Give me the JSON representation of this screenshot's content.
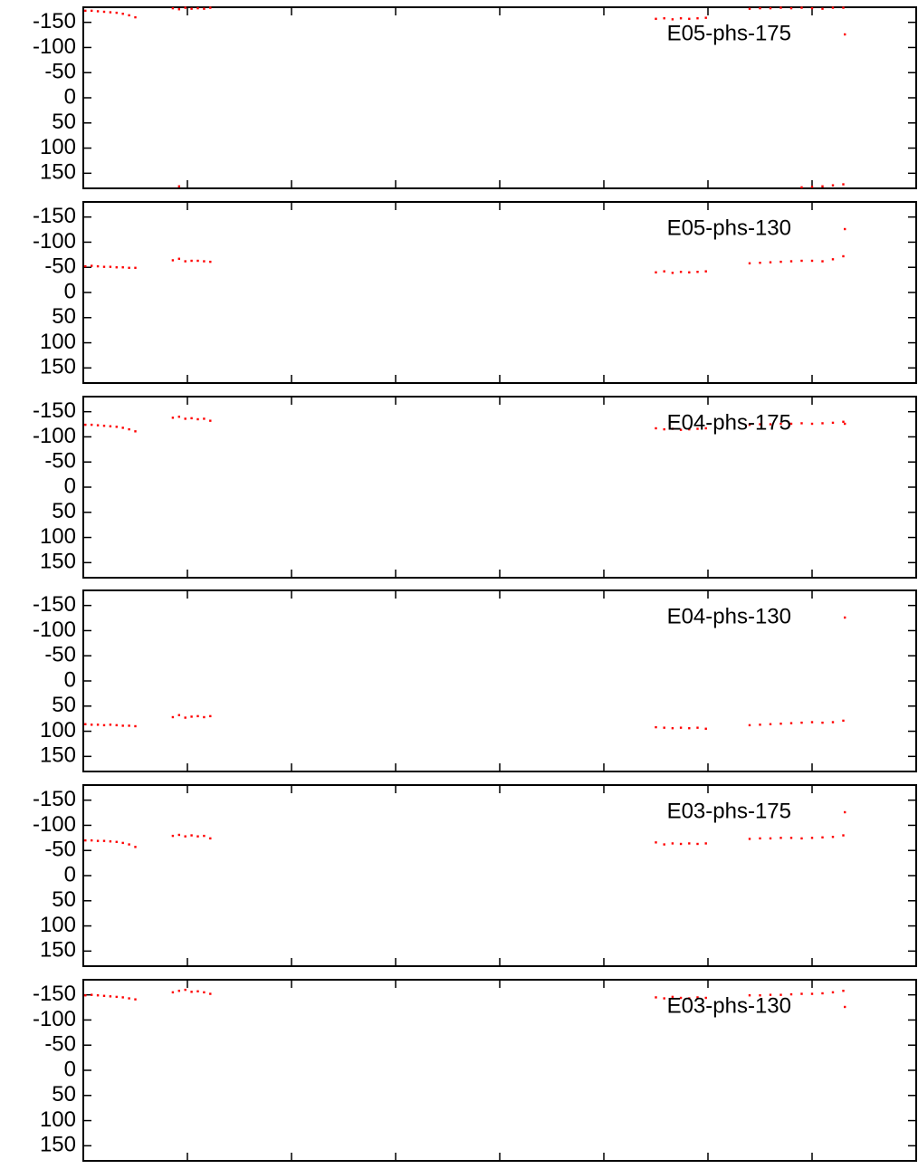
{
  "chart_data": [
    {
      "type": "scatter",
      "legend": "top-right",
      "y_inverted": true,
      "xlim": [
        0,
        8
      ],
      "xticks": [
        1,
        2,
        3,
        4,
        5,
        6,
        7
      ],
      "ylim": [
        -180,
        180
      ],
      "yticks": [
        -150,
        -100,
        -50,
        0,
        50,
        100,
        150
      ],
      "series": [
        {
          "name": "E05-phs-175",
          "color": "#ff0000",
          "x": [
            0.02,
            0.08,
            0.14,
            0.2,
            0.26,
            0.32,
            0.38,
            0.44,
            0.5,
            0.86,
            0.92,
            0.98,
            1.04,
            1.1,
            1.16,
            1.22,
            5.5,
            5.58,
            5.66,
            5.74,
            5.82,
            5.9,
            5.98,
            6.4,
            6.5,
            6.6,
            6.7,
            6.8,
            6.9,
            7.0,
            7.1,
            7.2,
            7.3,
            0.92,
            6.9,
            7.0,
            7.1,
            7.2,
            7.3
          ],
          "values": [
            -173,
            -173,
            -172,
            -171,
            -170,
            -169,
            -167,
            -164,
            -160,
            -178,
            -176,
            -179,
            -177,
            -178,
            -177,
            -179,
            -157,
            -158,
            -156,
            -158,
            -157,
            -158,
            -159,
            -177,
            -178,
            -178,
            -179,
            -178,
            -179,
            -178,
            -177,
            -179,
            -179,
            176,
            178,
            177,
            176,
            174,
            172
          ]
        }
      ]
    },
    {
      "type": "scatter",
      "legend": "top-right",
      "y_inverted": true,
      "xlim": [
        0,
        8
      ],
      "xticks": [
        1,
        2,
        3,
        4,
        5,
        6,
        7
      ],
      "ylim": [
        -180,
        180
      ],
      "yticks": [
        -150,
        -100,
        -50,
        0,
        50,
        100,
        150
      ],
      "series": [
        {
          "name": "E05-phs-130",
          "color": "#ff0000",
          "x": [
            0.02,
            0.08,
            0.14,
            0.2,
            0.26,
            0.32,
            0.38,
            0.44,
            0.5,
            0.86,
            0.92,
            0.98,
            1.04,
            1.1,
            1.16,
            1.22,
            5.5,
            5.58,
            5.66,
            5.74,
            5.82,
            5.9,
            5.98,
            6.4,
            6.5,
            6.6,
            6.7,
            6.8,
            6.9,
            7.0,
            7.1,
            7.2,
            7.3
          ],
          "values": [
            -52,
            -53,
            -52,
            -51,
            -51,
            -50,
            -50,
            -49,
            -49,
            -64,
            -67,
            -62,
            -63,
            -63,
            -62,
            -61,
            -40,
            -42,
            -39,
            -41,
            -40,
            -41,
            -42,
            -58,
            -59,
            -60,
            -61,
            -62,
            -63,
            -63,
            -62,
            -66,
            -72
          ]
        }
      ]
    },
    {
      "type": "scatter",
      "legend": "top-right",
      "y_inverted": true,
      "xlim": [
        0,
        8
      ],
      "xticks": [
        1,
        2,
        3,
        4,
        5,
        6,
        7
      ],
      "ylim": [
        -180,
        180
      ],
      "yticks": [
        -150,
        -100,
        -50,
        0,
        50,
        100,
        150
      ],
      "series": [
        {
          "name": "E04-phs-175",
          "color": "#ff0000",
          "x": [
            0.02,
            0.08,
            0.14,
            0.2,
            0.26,
            0.32,
            0.38,
            0.44,
            0.5,
            0.86,
            0.92,
            0.98,
            1.04,
            1.1,
            1.16,
            1.22,
            5.5,
            5.58,
            5.66,
            5.74,
            5.82,
            5.9,
            5.98,
            6.4,
            6.5,
            6.6,
            6.7,
            6.8,
            6.9,
            7.0,
            7.1,
            7.2,
            7.3
          ],
          "values": [
            -124,
            -124,
            -123,
            -122,
            -121,
            -120,
            -118,
            -115,
            -111,
            -138,
            -140,
            -136,
            -137,
            -135,
            -136,
            -132,
            -117,
            -115,
            -116,
            -114,
            -115,
            -116,
            -117,
            -124,
            -125,
            -125,
            -126,
            -126,
            -127,
            -126,
            -127,
            -128,
            -130
          ]
        }
      ]
    },
    {
      "type": "scatter",
      "legend": "top-right",
      "y_inverted": true,
      "xlim": [
        0,
        8
      ],
      "xticks": [
        1,
        2,
        3,
        4,
        5,
        6,
        7
      ],
      "ylim": [
        -180,
        180
      ],
      "yticks": [
        -150,
        -100,
        -50,
        0,
        50,
        100,
        150
      ],
      "series": [
        {
          "name": "E04-phs-130",
          "color": "#ff0000",
          "x": [
            0.02,
            0.08,
            0.14,
            0.2,
            0.26,
            0.32,
            0.38,
            0.44,
            0.5,
            0.86,
            0.92,
            0.98,
            1.04,
            1.1,
            1.16,
            1.22,
            5.5,
            5.58,
            5.66,
            5.74,
            5.82,
            5.9,
            5.98,
            6.4,
            6.5,
            6.6,
            6.7,
            6.8,
            6.9,
            7.0,
            7.1,
            7.2,
            7.3
          ],
          "values": [
            86,
            87,
            87,
            88,
            87,
            88,
            89,
            89,
            90,
            72,
            68,
            73,
            71,
            70,
            72,
            70,
            92,
            93,
            94,
            93,
            94,
            93,
            95,
            88,
            87,
            86,
            85,
            84,
            83,
            82,
            83,
            82,
            79
          ]
        }
      ]
    },
    {
      "type": "scatter",
      "legend": "top-right",
      "y_inverted": true,
      "xlim": [
        0,
        8
      ],
      "xticks": [
        1,
        2,
        3,
        4,
        5,
        6,
        7
      ],
      "ylim": [
        -180,
        180
      ],
      "yticks": [
        -150,
        -100,
        -50,
        0,
        50,
        100,
        150
      ],
      "series": [
        {
          "name": "E03-phs-175",
          "color": "#ff0000",
          "x": [
            0.02,
            0.08,
            0.14,
            0.2,
            0.26,
            0.32,
            0.38,
            0.44,
            0.5,
            0.86,
            0.92,
            0.98,
            1.04,
            1.1,
            1.16,
            1.22,
            5.5,
            5.58,
            5.66,
            5.74,
            5.82,
            5.9,
            5.98,
            6.4,
            6.5,
            6.6,
            6.7,
            6.8,
            6.9,
            7.0,
            7.1,
            7.2,
            7.3
          ],
          "values": [
            -70,
            -70,
            -69,
            -69,
            -68,
            -67,
            -65,
            -62,
            -57,
            -79,
            -81,
            -78,
            -80,
            -78,
            -79,
            -74,
            -66,
            -62,
            -64,
            -63,
            -64,
            -63,
            -64,
            -73,
            -74,
            -74,
            -75,
            -75,
            -74,
            -75,
            -76,
            -77,
            -80
          ]
        }
      ]
    },
    {
      "type": "scatter",
      "legend": "top-right",
      "y_inverted": true,
      "xlim": [
        0,
        8
      ],
      "xticks": [
        1,
        2,
        3,
        4,
        5,
        6,
        7
      ],
      "ylim": [
        -180,
        180
      ],
      "yticks": [
        -150,
        -100,
        -50,
        0,
        50,
        100,
        150
      ],
      "series": [
        {
          "name": "E03-phs-130",
          "color": "#ff0000",
          "x": [
            0.02,
            0.08,
            0.14,
            0.2,
            0.26,
            0.32,
            0.38,
            0.44,
            0.5,
            0.86,
            0.92,
            0.98,
            1.04,
            1.1,
            1.16,
            1.22,
            5.5,
            5.58,
            5.66,
            5.74,
            5.82,
            5.9,
            5.98,
            6.4,
            6.5,
            6.6,
            6.7,
            6.8,
            6.9,
            7.0,
            7.1,
            7.2,
            7.3
          ],
          "values": [
            -149,
            -150,
            -149,
            -148,
            -147,
            -146,
            -145,
            -143,
            -141,
            -155,
            -158,
            -160,
            -156,
            -157,
            -155,
            -152,
            -145,
            -143,
            -146,
            -144,
            -143,
            -145,
            -144,
            -149,
            -149,
            -150,
            -150,
            -151,
            -152,
            -152,
            -153,
            -155,
            -158
          ]
        }
      ]
    }
  ]
}
